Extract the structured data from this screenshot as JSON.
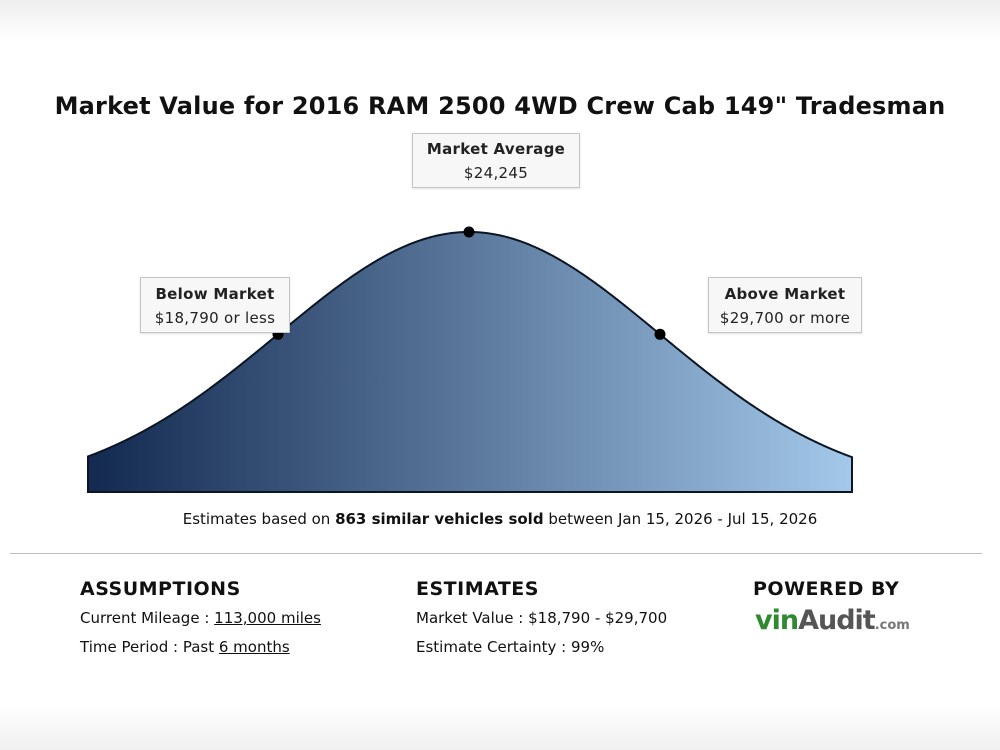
{
  "title": "Market Value for 2016 RAM 2500 4WD Crew Cab 149\" Tradesman",
  "chart_data": {
    "type": "area",
    "shape": "normal distribution",
    "gradient_colors": [
      "#13294f",
      "#a3c8ea"
    ],
    "points": [
      {
        "name": "below",
        "label": "Below Market",
        "value_text": "$18,790 or less",
        "value": 18790
      },
      {
        "name": "average",
        "label": "Market Average",
        "value_text": "$24,245",
        "value": 24245
      },
      {
        "name": "above",
        "label": "Above Market",
        "value_text": "$29,700 or more",
        "value": 29700
      }
    ]
  },
  "estimates": {
    "prefix": "Estimates based on ",
    "bold": "863 similar vehicles sold",
    "suffix": " between Jan 15, 2026 - Jul 15, 2026"
  },
  "assumptions": {
    "heading": "ASSUMPTIONS",
    "mileage_label": "Current Mileage : ",
    "mileage_value": "113,000 miles",
    "period_label": "Time Period : Past ",
    "period_value": "6 months"
  },
  "estimates_section": {
    "heading": "ESTIMATES",
    "market_value": "Market Value : $18,790 - $29,700",
    "certainty": "Estimate Certainty : 99%"
  },
  "powered": {
    "heading": "POWERED BY",
    "logo_vin": "vin",
    "logo_audit": "Audit",
    "logo_com": ".com"
  }
}
